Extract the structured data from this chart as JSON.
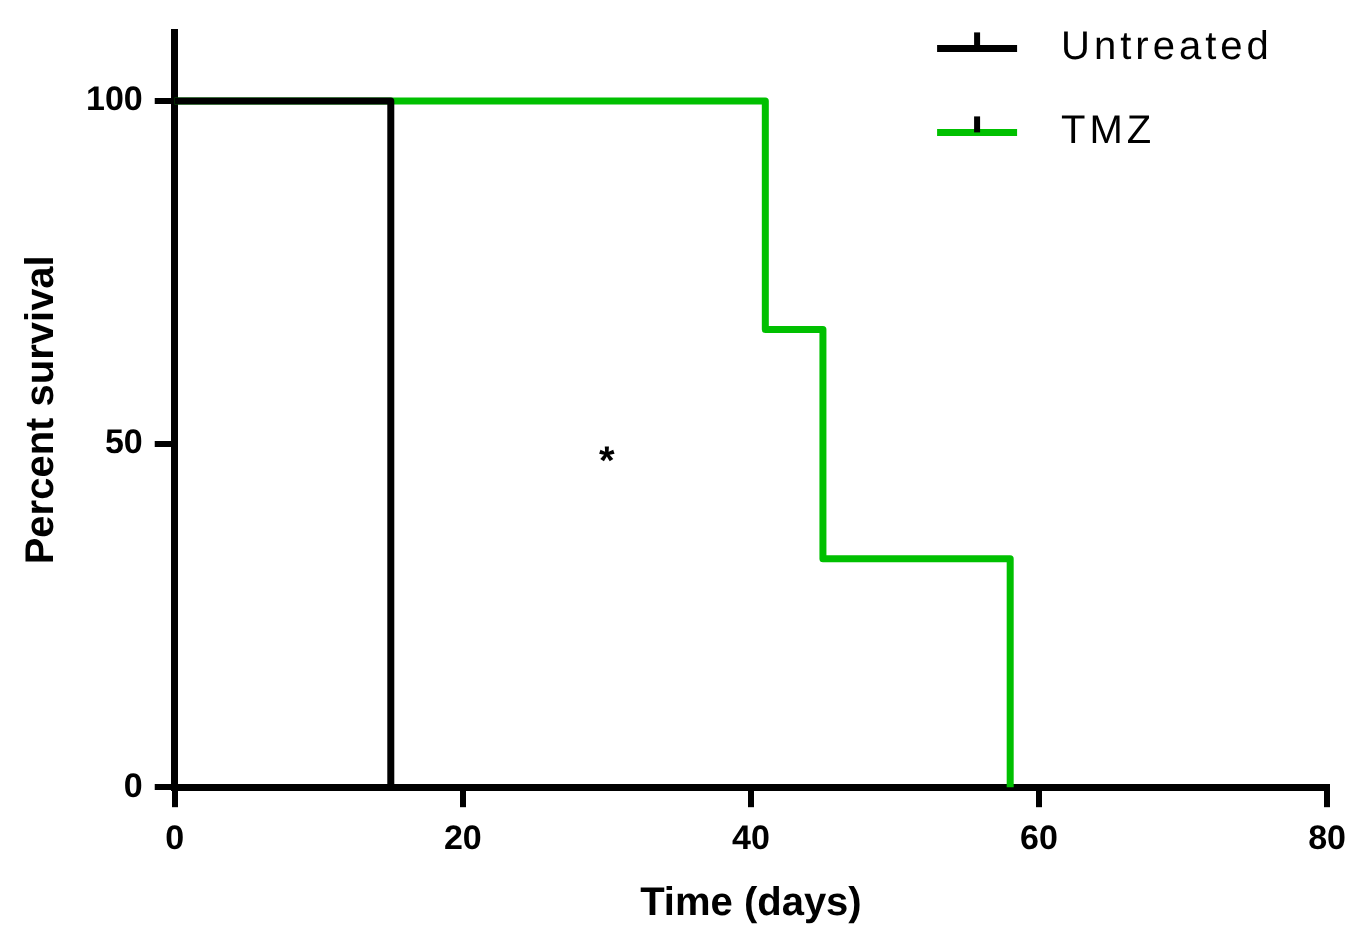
{
  "chart_data": {
    "type": "step",
    "xlabel": "Time (days)",
    "ylabel": "Percent survival",
    "xlim": [
      0,
      80
    ],
    "xticks": [
      0,
      20,
      40,
      60,
      80
    ],
    "ylim": [
      0,
      110
    ],
    "yticks": [
      0,
      50,
      100
    ],
    "grid": false,
    "legend": "top right",
    "marker": "none",
    "line_style": "solid",
    "series": [
      {
        "name": "Untreated",
        "color": "#000000",
        "x": [
          0,
          15
        ],
        "values": [
          100,
          0
        ]
      },
      {
        "name": "TMZ",
        "color": "#00c000",
        "x": [
          0,
          41,
          45,
          58
        ],
        "values": [
          100,
          66.7,
          33.3,
          0
        ]
      }
    ],
    "annotations": [
      "*"
    ]
  }
}
